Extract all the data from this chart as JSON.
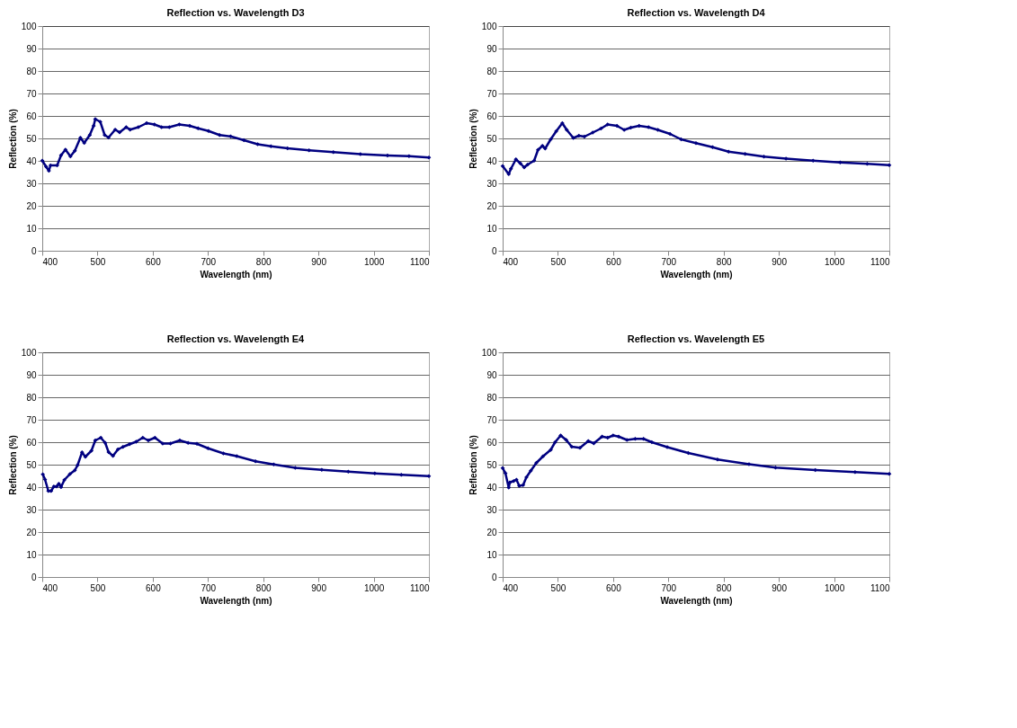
{
  "chart_data": [
    {
      "type": "line",
      "title": "Reflection vs. Wavelength D3",
      "xlabel": "Wavelength (nm)",
      "ylabel": "Reflection (%)",
      "marker": "diamond",
      "grid": "y",
      "xlim": [
        400,
        1100
      ],
      "ylim": [
        0,
        100
      ],
      "xticks": [
        400,
        500,
        600,
        700,
        800,
        900,
        1000,
        1100
      ],
      "yticks": [
        0,
        10,
        20,
        30,
        40,
        50,
        60,
        70,
        80,
        90,
        100
      ],
      "series": [
        {
          "color": "#000080",
          "x": [
            400,
            407,
            412,
            415,
            427,
            434,
            442,
            451,
            459,
            469,
            476,
            486,
            493,
            496,
            505,
            513,
            520,
            532,
            540,
            552,
            559,
            574,
            589,
            603,
            616,
            630,
            648,
            667,
            682,
            701,
            721,
            741,
            765,
            790,
            814,
            844,
            883,
            927,
            976,
            1025,
            1064,
            1100
          ],
          "values": [
            40.1,
            37.4,
            35.6,
            38,
            38,
            42.5,
            45,
            42,
            44.5,
            50.3,
            48,
            51.5,
            55.6,
            58.6,
            57.4,
            51.5,
            50.4,
            53.9,
            52.7,
            55,
            53.9,
            55,
            56.8,
            56.2,
            55,
            55,
            56.2,
            55.6,
            54.5,
            53.3,
            51.5,
            50.9,
            49.2,
            47.4,
            46.5,
            45.6,
            44.7,
            43.9,
            43,
            42.4,
            42.1,
            41.5
          ]
        }
      ]
    },
    {
      "type": "line",
      "title": "Reflection vs. Wavelength D4",
      "xlabel": "Wavelength (nm)",
      "ylabel": "Reflection (%)",
      "marker": "diamond",
      "grid": "y",
      "xlim": [
        400,
        1100
      ],
      "ylim": [
        0,
        100
      ],
      "xticks": [
        400,
        500,
        600,
        700,
        800,
        900,
        1000,
        1100
      ],
      "yticks": [
        0,
        10,
        20,
        30,
        40,
        50,
        60,
        70,
        80,
        90,
        100
      ],
      "series": [
        {
          "color": "#000080",
          "x": [
            400,
            411,
            415,
            424,
            432,
            439,
            445,
            457,
            464,
            472,
            477,
            487,
            497,
            508,
            516,
            528,
            538,
            548,
            563,
            578,
            590,
            607,
            620,
            632,
            647,
            664,
            681,
            703,
            723,
            750,
            780,
            809,
            839,
            873,
            913,
            962,
            1011,
            1060,
            1100
          ],
          "values": [
            37.7,
            34.1,
            36.5,
            40.7,
            38.9,
            37.1,
            38.3,
            40.1,
            44.9,
            46.7,
            45.5,
            49.6,
            53.2,
            56.8,
            53.8,
            50.2,
            51.2,
            50.8,
            52.6,
            54.4,
            56.2,
            55.6,
            53.8,
            54.8,
            55.6,
            55,
            53.8,
            52,
            49.6,
            47.9,
            46.1,
            44.1,
            43.1,
            41.9,
            41,
            40.1,
            39.3,
            38.7,
            38.1
          ]
        }
      ]
    },
    {
      "type": "line",
      "title": "Reflection vs. Wavelength E4",
      "xlabel": "Wavelength (nm)",
      "ylabel": "Reflection (%)",
      "marker": "diamond",
      "grid": "y",
      "xlim": [
        400,
        1100
      ],
      "ylim": [
        0,
        100
      ],
      "xticks": [
        400,
        500,
        600,
        700,
        800,
        900,
        1000,
        1100
      ],
      "yticks": [
        0,
        10,
        20,
        30,
        40,
        50,
        60,
        70,
        80,
        90,
        100
      ],
      "series": [
        {
          "color": "#000080",
          "x": [
            401,
            405,
            411,
            416,
            421,
            426,
            430,
            434,
            440,
            450,
            459,
            464,
            472,
            478,
            489,
            496,
            506,
            514,
            520,
            528,
            537,
            546,
            558,
            570,
            582,
            592,
            604,
            618,
            632,
            649,
            664,
            680,
            700,
            728,
            752,
            786,
            819,
            858,
            906,
            954,
            1002,
            1050,
            1100
          ],
          "values": [
            45.7,
            43.4,
            38.3,
            38.3,
            40.3,
            40.3,
            41.5,
            40,
            43.2,
            45.8,
            47.5,
            49.8,
            55.5,
            53.5,
            56.2,
            60.8,
            62,
            59.7,
            55.6,
            53.9,
            56.8,
            57.9,
            59.1,
            60.2,
            62,
            60.8,
            62,
            59.4,
            59.4,
            60.8,
            59.7,
            59.3,
            57.3,
            55,
            53.8,
            51.5,
            50.1,
            48.6,
            47.7,
            46.9,
            46.1,
            45.5,
            44.9
          ]
        }
      ]
    },
    {
      "type": "line",
      "title": "Reflection vs. Wavelength E5",
      "xlabel": "Wavelength (nm)",
      "ylabel": "Reflection (%)",
      "marker": "diamond",
      "grid": "y",
      "xlim": [
        400,
        1100
      ],
      "ylim": [
        0,
        100
      ],
      "xticks": [
        400,
        500,
        600,
        700,
        800,
        900,
        1000,
        1100
      ],
      "yticks": [
        0,
        10,
        20,
        30,
        40,
        50,
        60,
        70,
        80,
        90,
        100
      ],
      "series": [
        {
          "color": "#000080",
          "x": [
            400,
            405,
            411,
            413,
            420,
            425,
            430,
            437,
            443,
            451,
            461,
            473,
            487,
            495,
            505,
            515,
            525,
            540,
            555,
            565,
            580,
            590,
            600,
            610,
            625,
            640,
            655,
            670,
            698,
            736,
            789,
            846,
            894,
            966,
            1038,
            1100
          ],
          "values": [
            48.5,
            46.2,
            39.8,
            42.1,
            42.7,
            43.3,
            40.6,
            40.9,
            44.4,
            47.3,
            50.8,
            53.7,
            56.6,
            60,
            63,
            61,
            58,
            57.5,
            60.5,
            59.5,
            62.5,
            62,
            63,
            62.5,
            61,
            61.5,
            61.5,
            60,
            57.8,
            55.2,
            52.3,
            50.2,
            48.7,
            47.6,
            46.7,
            45.9
          ]
        }
      ]
    }
  ]
}
